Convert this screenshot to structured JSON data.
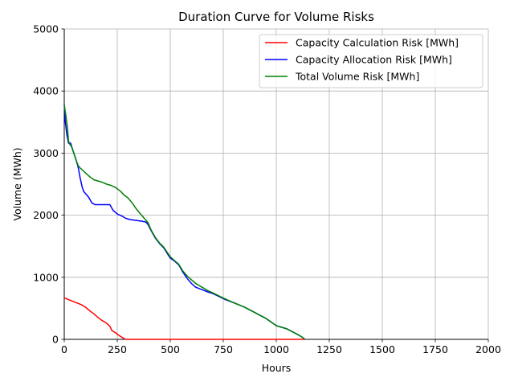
{
  "chart_data": {
    "type": "line",
    "title": "Duration Curve for Volume Risks",
    "xlabel": "Hours",
    "ylabel": "Volume (MWh)",
    "xlim": [
      0,
      2000
    ],
    "ylim": [
      0,
      5000
    ],
    "xticks": [
      "0",
      "250",
      "500",
      "750",
      "1000",
      "1250",
      "1500",
      "1750",
      "2000"
    ],
    "yticks": [
      "0",
      "1000",
      "2000",
      "3000",
      "4000",
      "5000"
    ],
    "grid": true,
    "legend_position": "top-right",
    "series": [
      {
        "name": "Capacity Calculation Risk [MWh]",
        "color": "#ff0000",
        "x": [
          0,
          20,
          50,
          80,
          100,
          120,
          140,
          160,
          180,
          200,
          215,
          225,
          240,
          260,
          280,
          290,
          300,
          400,
          500,
          600,
          700,
          800,
          900,
          1000,
          1100,
          1135
        ],
        "y": [
          670,
          640,
          600,
          560,
          520,
          460,
          410,
          350,
          300,
          260,
          210,
          140,
          110,
          60,
          15,
          0,
          0,
          0,
          0,
          0,
          0,
          0,
          0,
          0,
          0,
          0
        ]
      },
      {
        "name": "Capacity Allocation Risk [MWh]",
        "color": "#0000ff",
        "x": [
          0,
          5,
          12,
          20,
          30,
          45,
          55,
          65,
          75,
          85,
          92,
          100,
          115,
          130,
          145,
          160,
          180,
          200,
          215,
          230,
          250,
          270,
          290,
          310,
          330,
          350,
          370,
          385,
          395,
          410,
          430,
          450,
          470,
          490,
          500,
          520,
          540,
          560,
          580,
          600,
          620,
          650,
          680,
          700,
          730,
          760,
          800,
          850,
          900,
          950,
          980,
          1000,
          1050,
          1100,
          1120,
          1135
        ],
        "y": [
          3780,
          3500,
          3300,
          3160,
          3160,
          3000,
          2900,
          2780,
          2600,
          2450,
          2380,
          2350,
          2290,
          2200,
          2170,
          2170,
          2170,
          2170,
          2170,
          2080,
          2020,
          1990,
          1950,
          1930,
          1920,
          1910,
          1900,
          1890,
          1850,
          1750,
          1630,
          1540,
          1470,
          1360,
          1310,
          1260,
          1200,
          1080,
          980,
          900,
          840,
          800,
          760,
          740,
          690,
          640,
          590,
          520,
          430,
          340,
          270,
          220,
          170,
          80,
          40,
          0
        ]
      },
      {
        "name": "Total Volume Risk [MWh]",
        "color": "#008000",
        "x": [
          0,
          8,
          15,
          20,
          25,
          35,
          45,
          55,
          65,
          75,
          85,
          100,
          120,
          140,
          160,
          180,
          200,
          220,
          240,
          260,
          270,
          280,
          300,
          320,
          340,
          360,
          380,
          395,
          410,
          430,
          450,
          470,
          490,
          500,
          520,
          540,
          560,
          580,
          600,
          620,
          650,
          680,
          700,
          730,
          760,
          800,
          850,
          900,
          950,
          980,
          1000,
          1050,
          1100,
          1120,
          1135
        ],
        "y": [
          3780,
          3600,
          3400,
          3200,
          3150,
          3100,
          3000,
          2900,
          2800,
          2760,
          2730,
          2680,
          2620,
          2570,
          2550,
          2530,
          2500,
          2480,
          2450,
          2400,
          2370,
          2330,
          2280,
          2200,
          2100,
          2020,
          1940,
          1880,
          1760,
          1640,
          1550,
          1480,
          1380,
          1330,
          1270,
          1210,
          1100,
          1020,
          960,
          900,
          840,
          780,
          750,
          700,
          650,
          590,
          520,
          430,
          340,
          270,
          220,
          170,
          80,
          40,
          0
        ]
      }
    ]
  }
}
